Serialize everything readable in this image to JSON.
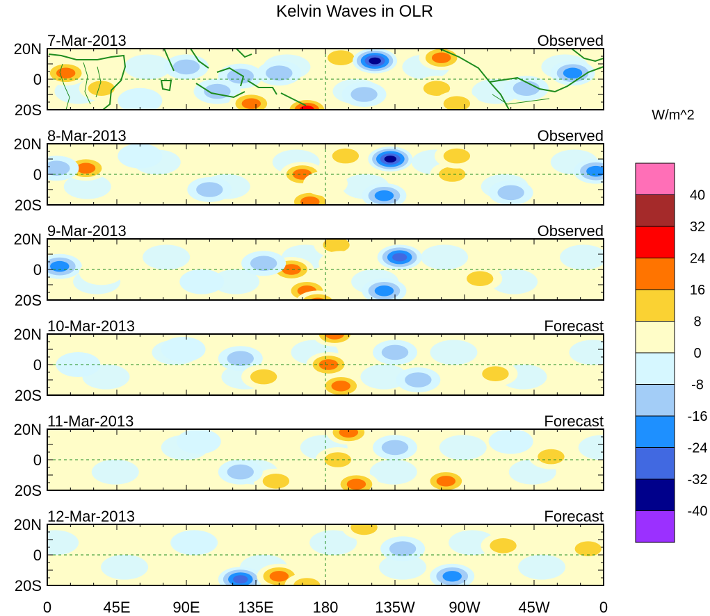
{
  "chart_data": {
    "type": "heatmap",
    "title": "Kelvin Waves in OLR",
    "units_label": "W/m^2",
    "x_tick_labels": [
      "0",
      "45E",
      "90E",
      "135E",
      "180",
      "135W",
      "90W",
      "45W",
      "0"
    ],
    "x_tick_lon": [
      0,
      45,
      90,
      135,
      180,
      225,
      270,
      315,
      360
    ],
    "y_tick_labels": [
      "20N",
      "0",
      "20S"
    ],
    "y_tick_lat": [
      20,
      0,
      -20
    ],
    "x_range": [
      0,
      360
    ],
    "y_range": [
      -20,
      20
    ],
    "colorbar": {
      "levels": [
        "40",
        "32",
        "24",
        "16",
        "8",
        "0",
        "-8",
        "-16",
        "-24",
        "-32",
        "-40"
      ],
      "colors": [
        "#ff6fb7",
        "#a52a2a",
        "#ff0000",
        "#ff7400",
        "#fad233",
        "#fffdc8",
        "#d6f7ff",
        "#a3cdf7",
        "#1e90ff",
        "#4169e1",
        "#00008b",
        "#9b30ff"
      ]
    },
    "panels": [
      {
        "date": "7-Mar-2013",
        "status": "Observed",
        "anomalies": [
          {
            "lon": 12,
            "lat": 4,
            "value": 22
          },
          {
            "lon": 35,
            "lat": -6,
            "value": 12
          },
          {
            "lon": 90,
            "lat": 8,
            "value": -10
          },
          {
            "lon": 110,
            "lat": -8,
            "value": -12
          },
          {
            "lon": 125,
            "lat": 2,
            "value": -14
          },
          {
            "lon": 132,
            "lat": -16,
            "value": 18
          },
          {
            "lon": 168,
            "lat": -20,
            "value": 26
          },
          {
            "lon": 150,
            "lat": 4,
            "value": -12
          },
          {
            "lon": 190,
            "lat": 14,
            "value": 14
          },
          {
            "lon": 212,
            "lat": 12,
            "value": -36
          },
          {
            "lon": 205,
            "lat": -10,
            "value": -16
          },
          {
            "lon": 255,
            "lat": 14,
            "value": 20
          },
          {
            "lon": 252,
            "lat": -6,
            "value": 14
          },
          {
            "lon": 265,
            "lat": -16,
            "value": 14
          },
          {
            "lon": 340,
            "lat": 4,
            "value": -24
          },
          {
            "lon": 310,
            "lat": -6,
            "value": -10
          },
          {
            "lon": 60,
            "lat": -14,
            "value": -8
          }
        ]
      },
      {
        "date": "8-Mar-2013",
        "status": "Observed",
        "anomalies": [
          {
            "lon": 25,
            "lat": 4,
            "value": 18
          },
          {
            "lon": 6,
            "lat": 4,
            "value": -10
          },
          {
            "lon": 105,
            "lat": -10,
            "value": -14
          },
          {
            "lon": 165,
            "lat": 0,
            "value": 18
          },
          {
            "lon": 170,
            "lat": -18,
            "value": 22
          },
          {
            "lon": 193,
            "lat": 12,
            "value": 16
          },
          {
            "lon": 222,
            "lat": 10,
            "value": -36
          },
          {
            "lon": 218,
            "lat": -14,
            "value": -18
          },
          {
            "lon": 262,
            "lat": 0,
            "value": 12
          },
          {
            "lon": 265,
            "lat": 12,
            "value": 14
          },
          {
            "lon": 180,
            "lat": -6,
            "value": 8
          },
          {
            "lon": 355,
            "lat": 2,
            "value": -18
          },
          {
            "lon": 300,
            "lat": -12,
            "value": -10
          },
          {
            "lon": 60,
            "lat": 12,
            "value": -6
          }
        ]
      },
      {
        "date": "9-Mar-2013",
        "status": "Observed",
        "anomalies": [
          {
            "lon": 8,
            "lat": 2,
            "value": -18
          },
          {
            "lon": 35,
            "lat": -2,
            "value": 8
          },
          {
            "lon": 158,
            "lat": 0,
            "value": 20
          },
          {
            "lon": 140,
            "lat": 4,
            "value": -10
          },
          {
            "lon": 168,
            "lat": -14,
            "value": 18
          },
          {
            "lon": 187,
            "lat": 16,
            "value": 14
          },
          {
            "lon": 228,
            "lat": 8,
            "value": -30
          },
          {
            "lon": 218,
            "lat": -14,
            "value": -20
          },
          {
            "lon": 175,
            "lat": -22,
            "value": 22
          },
          {
            "lon": 280,
            "lat": -6,
            "value": 12
          },
          {
            "lon": 190,
            "lat": 4,
            "value": 8
          },
          {
            "lon": 100,
            "lat": -8,
            "value": -8
          }
        ]
      },
      {
        "date": "10-Mar-2013",
        "status": "Forecast",
        "anomalies": [
          {
            "lon": 186,
            "lat": 20,
            "value": 18
          },
          {
            "lon": 182,
            "lat": 0,
            "value": 18
          },
          {
            "lon": 190,
            "lat": -14,
            "value": 20
          },
          {
            "lon": 125,
            "lat": 4,
            "value": -10
          },
          {
            "lon": 140,
            "lat": -8,
            "value": 10
          },
          {
            "lon": 290,
            "lat": -6,
            "value": 12
          },
          {
            "lon": 225,
            "lat": 8,
            "value": -12
          },
          {
            "lon": 240,
            "lat": -10,
            "value": -10
          },
          {
            "lon": 20,
            "lat": 0,
            "value": -8
          },
          {
            "lon": 88,
            "lat": 10,
            "value": -8
          }
        ]
      },
      {
        "date": "11-Mar-2013",
        "status": "Forecast",
        "anomalies": [
          {
            "lon": 195,
            "lat": 18,
            "value": 18
          },
          {
            "lon": 188,
            "lat": 0,
            "value": 16
          },
          {
            "lon": 200,
            "lat": -16,
            "value": 18
          },
          {
            "lon": 148,
            "lat": -14,
            "value": 16
          },
          {
            "lon": 125,
            "lat": -8,
            "value": -12
          },
          {
            "lon": 258,
            "lat": -14,
            "value": 18
          },
          {
            "lon": 326,
            "lat": 2,
            "value": 16
          },
          {
            "lon": 225,
            "lat": 8,
            "value": -12
          },
          {
            "lon": 300,
            "lat": 12,
            "value": -8
          },
          {
            "lon": 98,
            "lat": 12,
            "value": -8
          }
        ]
      },
      {
        "date": "12-Mar-2013",
        "status": "Forecast",
        "anomalies": [
          {
            "lon": 125,
            "lat": -16,
            "value": -26
          },
          {
            "lon": 150,
            "lat": -14,
            "value": 18
          },
          {
            "lon": 168,
            "lat": -20,
            "value": 14
          },
          {
            "lon": 205,
            "lat": 18,
            "value": 16
          },
          {
            "lon": 262,
            "lat": -14,
            "value": -20
          },
          {
            "lon": 295,
            "lat": 6,
            "value": 12
          },
          {
            "lon": 350,
            "lat": 4,
            "value": 16
          },
          {
            "lon": 230,
            "lat": 4,
            "value": -12
          },
          {
            "lon": 95,
            "lat": 8,
            "value": -8
          }
        ]
      }
    ]
  }
}
